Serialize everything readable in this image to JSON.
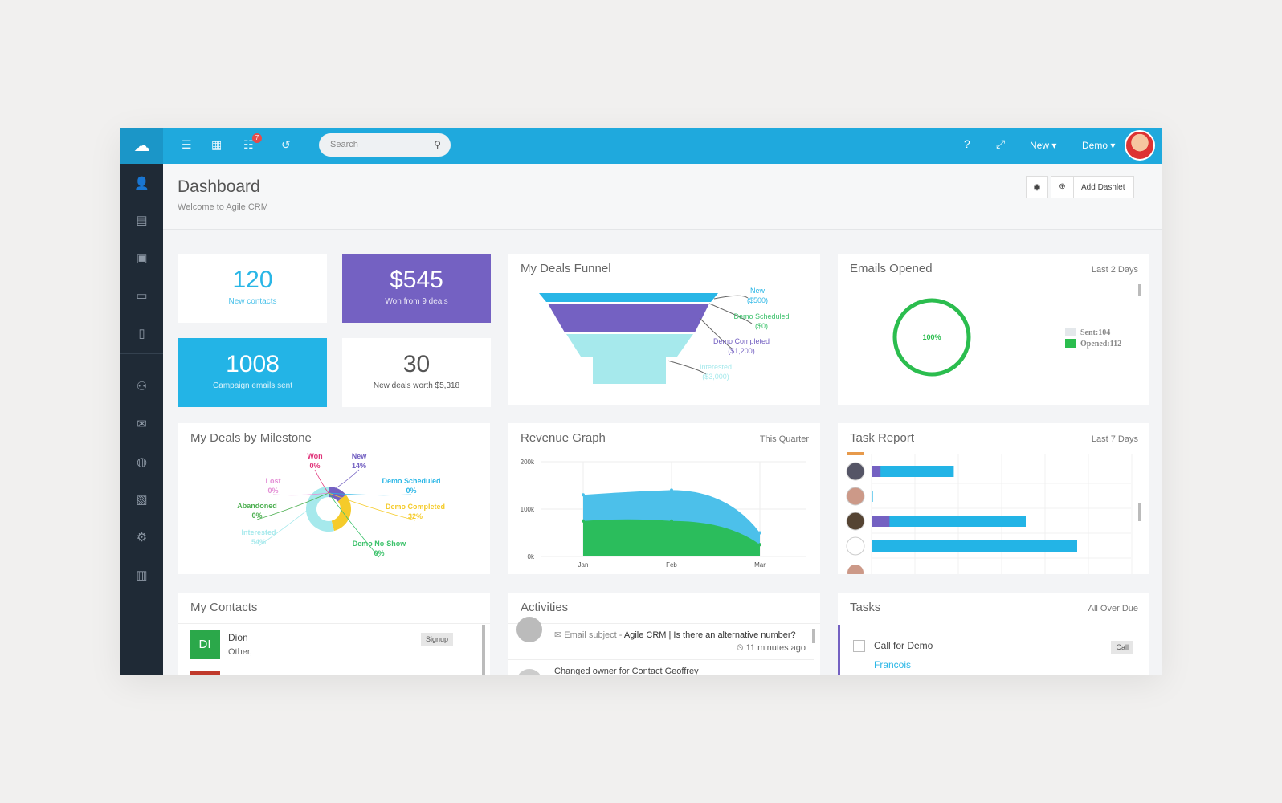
{
  "topbar": {
    "search_placeholder": "Search",
    "notification_count": "7",
    "new_label": "New ▾",
    "user_label": "Demo ▾"
  },
  "header": {
    "title": "Dashboard",
    "subtitle": "Welcome to Agile CRM",
    "add_dashlet": "Add Dashlet"
  },
  "stats": [
    {
      "value": "120",
      "label": "New contacts",
      "color": "#ffffff",
      "text": "#29b6e6"
    },
    {
      "value": "$545",
      "label": "Won from 9 deals",
      "color": "#7461c2",
      "text": "#ffffff"
    },
    {
      "value": "1008",
      "label": "Campaign emails sent",
      "color": "#23b4e6",
      "text": "#ffffff"
    },
    {
      "value": "30",
      "label": "New deals worth $5,318",
      "color": "#ffffff",
      "text": "#555555"
    }
  ],
  "funnel": {
    "title": "My Deals Funnel",
    "chart_data": {
      "type": "funnel",
      "stages": [
        {
          "label": "New",
          "value_label": "($500)",
          "color": "#29b6e6"
        },
        {
          "label": "Demo Scheduled",
          "value_label": "($0)",
          "color": "#3cc26b"
        },
        {
          "label": "Demo Completed",
          "value_label": "($1,200)",
          "color": "#7461c2"
        },
        {
          "label": "Interested",
          "value_label": "($3,000)",
          "color": "#a6e9ec"
        }
      ]
    }
  },
  "emails": {
    "title": "Emails Opened",
    "range": "Last 2 Days",
    "center": "100%",
    "legend": [
      "Sent:104",
      "Opened:112"
    ],
    "colors": [
      "#e4e8eb",
      "#2bbd4e"
    ],
    "fraction": 1.0
  },
  "milestone": {
    "title": "My Deals by Milestone",
    "chart_data": {
      "type": "pie",
      "slices": [
        {
          "label": "New",
          "pct": "14%",
          "value": 14,
          "color": "#7461c2"
        },
        {
          "label": "Demo Scheduled",
          "pct": "0%",
          "value": 0,
          "color": "#29b6e6"
        },
        {
          "label": "Demo Completed",
          "pct": "32%",
          "value": 32,
          "color": "#f5cb2a"
        },
        {
          "label": "Demo No-Show",
          "pct": "0%",
          "value": 0,
          "color": "#3cc26b"
        },
        {
          "label": "Interested",
          "pct": "54%",
          "value": 54,
          "color": "#a6e9ec"
        },
        {
          "label": "Abandoned",
          "pct": "0%",
          "value": 0,
          "color": "#4caf50"
        },
        {
          "label": "Lost",
          "pct": "0%",
          "value": 0,
          "color": "#e48fd6"
        },
        {
          "label": "Won",
          "pct": "0%",
          "value": 0,
          "color": "#e0347a"
        }
      ]
    }
  },
  "revenue": {
    "title": "Revenue Graph",
    "range": "This Quarter",
    "chart_data": {
      "type": "area",
      "categories": [
        "Jan",
        "Feb",
        "Mar"
      ],
      "yticks": [
        "200k",
        "100k",
        "0k"
      ],
      "ylim": [
        0,
        200000
      ],
      "series": [
        {
          "values": [
            130000,
            140000,
            50000
          ],
          "color": "#4cc0ea"
        },
        {
          "values": [
            75000,
            75000,
            25000
          ],
          "color": "#2bbd5c"
        }
      ]
    }
  },
  "taskreport": {
    "title": "Task Report",
    "range": "Last 7 Days",
    "chart_data": {
      "type": "bar",
      "rows": [
        {
          "a": 0.05,
          "b": 0.27
        },
        {
          "a": 0,
          "b": 0.005
        },
        {
          "a": 0.1,
          "b": 0.5
        },
        {
          "a": 0,
          "b": 0.8
        }
      ]
    }
  },
  "contacts": {
    "title": "My Contacts",
    "items": [
      {
        "initials": "DI",
        "name": "Dion",
        "sub": "Other,",
        "tag": "Signup"
      }
    ]
  },
  "activities": {
    "title": "Activities",
    "items": [
      {
        "prefix": "Email subject - ",
        "subject": "Agile CRM | Is there an alternative number?",
        "time": "11 minutes ago"
      },
      {
        "prefix": "Changed owner for Contact Geoffrey"
      }
    ]
  },
  "tasks": {
    "title": "Tasks",
    "range": "All Over Due",
    "items": [
      {
        "name": "Call for Demo",
        "owner": "Francois",
        "tag": "Call"
      }
    ]
  }
}
